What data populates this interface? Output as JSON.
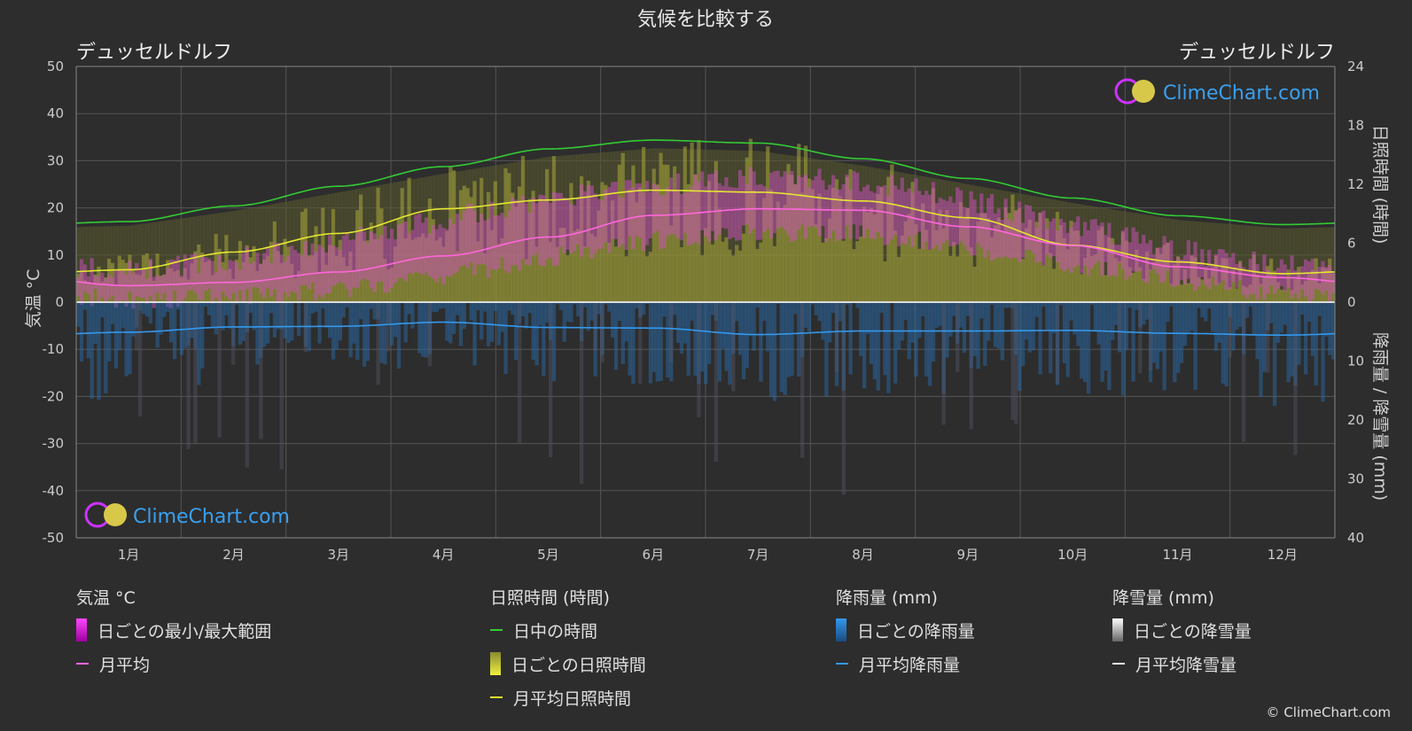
{
  "chart_data": {
    "type": "area",
    "title": "気候を比較する",
    "location_left": "デュッセルドルフ",
    "location_right": "デュッセルドルフ",
    "watermark": "ClimeChart.com",
    "copyright": "© ClimeChart.com",
    "months": [
      "1月",
      "2月",
      "3月",
      "4月",
      "5月",
      "6月",
      "7月",
      "8月",
      "9月",
      "10月",
      "11月",
      "12月"
    ],
    "axes": {
      "left": {
        "label": "気温 °C",
        "min": -50,
        "max": 50,
        "ticks": [
          50,
          40,
          30,
          20,
          10,
          0,
          -10,
          -20,
          -30,
          -40,
          -50
        ]
      },
      "right_top": {
        "label": "日照時間 (時間)",
        "min": 0,
        "max": 24,
        "ticks": [
          24,
          18,
          12,
          6,
          0
        ]
      },
      "right_bottom": {
        "label": "降雨量 / 降雪量 (mm)",
        "min": 0,
        "max": 40,
        "ticks": [
          10,
          20,
          30,
          40
        ]
      }
    },
    "series": [
      {
        "name": "日中の時間",
        "unit": "h",
        "color": "#33cc33",
        "values": [
          8.2,
          9.8,
          11.8,
          13.8,
          15.6,
          16.5,
          16.2,
          14.6,
          12.6,
          10.6,
          8.8,
          7.9
        ]
      },
      {
        "name": "月平均日照時間",
        "unit": "h",
        "color": "#e6e633",
        "values": [
          3.3,
          5.1,
          7.0,
          9.5,
          10.4,
          11.4,
          11.2,
          10.3,
          8.6,
          5.8,
          4.1,
          2.9
        ]
      },
      {
        "name": "月平均",
        "unit": "°C",
        "color": "#ff66dd",
        "values": [
          3.5,
          4.2,
          6.4,
          9.8,
          13.8,
          18.4,
          19.8,
          19.5,
          16.0,
          12.0,
          7.5,
          5.2
        ]
      },
      {
        "name": "月平均降雨量",
        "unit": "mm",
        "color": "#3399ee",
        "values": [
          5.1,
          4.2,
          4.1,
          3.4,
          4.3,
          4.4,
          5.5,
          4.9,
          4.9,
          4.8,
          5.3,
          5.6
        ]
      }
    ],
    "temp_range": {
      "name": "日ごとの最小/最大範囲",
      "min": [
        0.5,
        1.0,
        2.8,
        5.5,
        9.5,
        13.0,
        14.8,
        14.6,
        11.5,
        8.0,
        4.5,
        1.8
      ],
      "max": [
        6.0,
        8.0,
        12.0,
        16.5,
        20.5,
        24.0,
        25.5,
        25.0,
        20.5,
        15.5,
        10.0,
        6.5
      ]
    },
    "grid": true,
    "legend": {
      "groups": [
        {
          "title": "気温 °C",
          "items": [
            {
              "label": "日ごとの最小/最大範囲",
              "kind": "bar",
              "color": "#e020e0"
            },
            {
              "label": "月平均",
              "kind": "line",
              "color": "#ff66dd"
            }
          ]
        },
        {
          "title": "日照時間 (時間)",
          "items": [
            {
              "label": "日中の時間",
              "kind": "line",
              "color": "#33cc33"
            },
            {
              "label": "日ごとの日照時間",
              "kind": "bar",
              "color": "#d8d830"
            },
            {
              "label": "月平均日照時間",
              "kind": "line",
              "color": "#e6e633"
            }
          ]
        },
        {
          "title": "降雨量 (mm)",
          "items": [
            {
              "label": "日ごとの降雨量",
              "kind": "bar",
              "color": "#2a7fd4"
            },
            {
              "label": "月平均降雨量",
              "kind": "line",
              "color": "#3399ee"
            }
          ]
        },
        {
          "title": "降雪量 (mm)",
          "items": [
            {
              "label": "日ごとの降雪量",
              "kind": "bar",
              "color": "#dddddd"
            },
            {
              "label": "月平均降雪量",
              "kind": "line",
              "color": "#eeeeee"
            }
          ]
        }
      ]
    }
  }
}
